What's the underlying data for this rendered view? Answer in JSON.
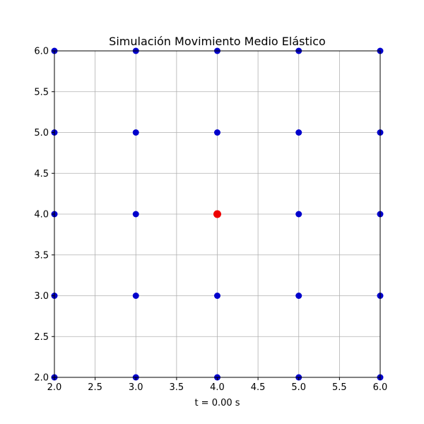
{
  "chart_data": {
    "type": "scatter",
    "title": "Simulación Movimiento Medio Elástico",
    "xlabel": "t = 0.00 s",
    "ylabel": "",
    "xlim": [
      2.0,
      6.0
    ],
    "ylim": [
      2.0,
      6.0
    ],
    "xticks": [
      "2.0",
      "2.5",
      "3.0",
      "3.5",
      "4.0",
      "4.5",
      "5.0",
      "5.5",
      "6.0"
    ],
    "yticks": [
      "2.0",
      "2.5",
      "3.0",
      "3.5",
      "4.0",
      "4.5",
      "5.0",
      "5.5",
      "6.0"
    ],
    "grid": true,
    "series": [
      {
        "color": "#0000cc",
        "points": [
          [
            2,
            2
          ],
          [
            3,
            2
          ],
          [
            4,
            2
          ],
          [
            5,
            2
          ],
          [
            6,
            2
          ],
          [
            2,
            3
          ],
          [
            3,
            3
          ],
          [
            4,
            3
          ],
          [
            5,
            3
          ],
          [
            6,
            3
          ],
          [
            2,
            4
          ],
          [
            3,
            4
          ],
          [
            5,
            4
          ],
          [
            6,
            4
          ],
          [
            2,
            5
          ],
          [
            3,
            5
          ],
          [
            4,
            5
          ],
          [
            5,
            5
          ],
          [
            6,
            5
          ],
          [
            2,
            6
          ],
          [
            3,
            6
          ],
          [
            4,
            6
          ],
          [
            5,
            6
          ],
          [
            6,
            6
          ]
        ]
      },
      {
        "color": "#ee0000",
        "points": [
          [
            4,
            4
          ]
        ]
      }
    ]
  }
}
